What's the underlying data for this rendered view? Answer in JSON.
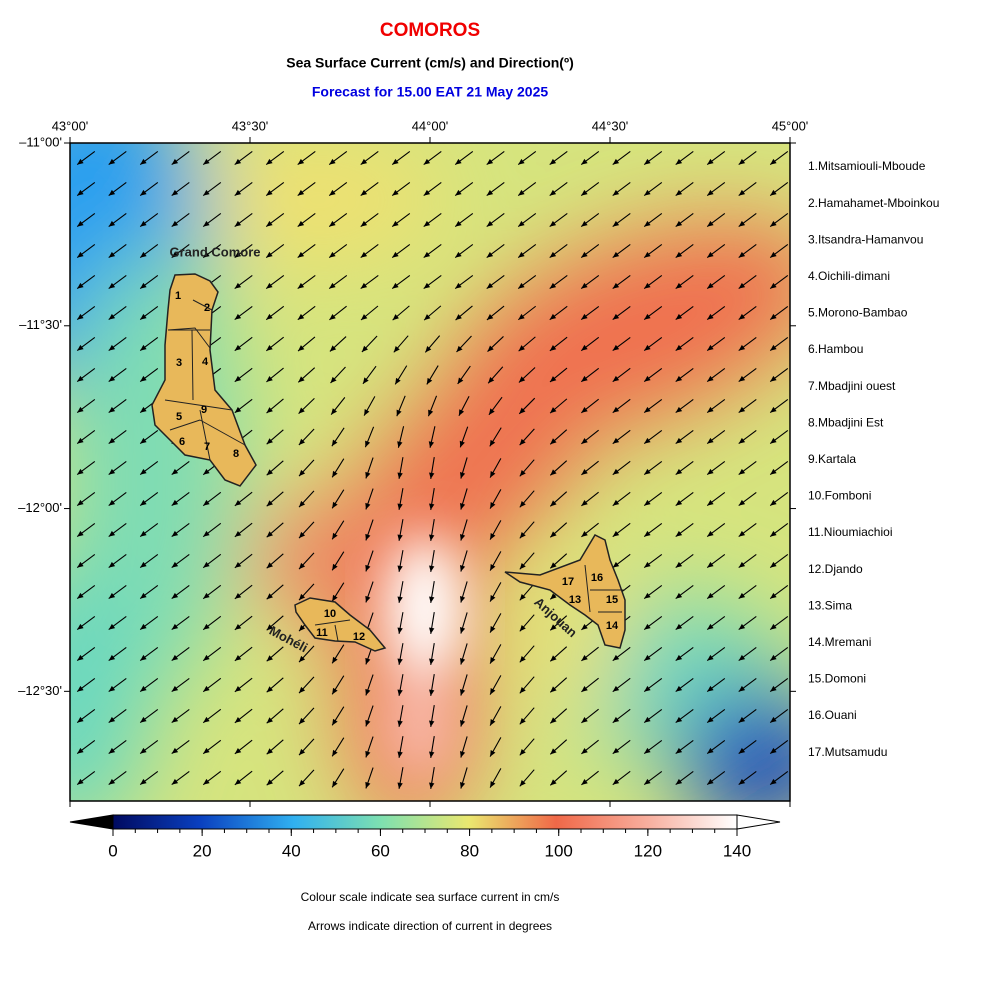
{
  "header": {
    "title": "COMOROS",
    "subtitle": "Sea Surface Current (cm/s) and Direction(º)",
    "forecast": "Forecast for  15.00 EAT 21 May 2025"
  },
  "map": {
    "xlim": [
      43,
      45
    ],
    "ylim": [
      -11,
      -12.8
    ],
    "xticks": [
      {
        "value": 43,
        "label": "43°00'"
      },
      {
        "value": 43.5,
        "label": "43°30'"
      },
      {
        "value": 44,
        "label": "44°00'"
      },
      {
        "value": 44.5,
        "label": "44°30'"
      },
      {
        "value": 45,
        "label": "45°00'"
      }
    ],
    "yticks": [
      {
        "value": -11,
        "label": "–11°00'"
      },
      {
        "value": -11.5,
        "label": "–11°30'"
      },
      {
        "value": -12,
        "label": "–12°00'"
      },
      {
        "value": -12.5,
        "label": "–12°30'"
      }
    ],
    "islands": [
      "Grand Comore",
      "Mohéli",
      "Anjouan"
    ],
    "region_numbers": [
      "1",
      "2",
      "3",
      "4",
      "5",
      "6",
      "7",
      "8",
      "9",
      "10",
      "11",
      "12",
      "13",
      "14",
      "15",
      "16",
      "17"
    ]
  },
  "legend": [
    "1.Mitsamiouli-Mboude",
    "2.Hamahamet-Mboinkou",
    "3.Itsandra-Hamanvou",
    "4.Oichili-dimani",
    "5.Morono-Bambao",
    "6.Hambou",
    "7.Mbadjini ouest",
    "8.Mbadjini Est",
    "9.Kartala",
    "10.Fomboni",
    "11.Nioumiachioi",
    "12.Djando",
    "13.Sima",
    "14.Mremani",
    "15.Domoni",
    "16.Ouani",
    "17.Mutsamudu"
  ],
  "colorbar": {
    "range": [
      0,
      140
    ],
    "ticks": [
      0,
      20,
      40,
      60,
      80,
      100,
      120,
      140
    ]
  },
  "notes": [
    "Colour scale indicate sea surface current in cm/s",
    "Arrows indicate direction of current in degrees"
  ]
}
